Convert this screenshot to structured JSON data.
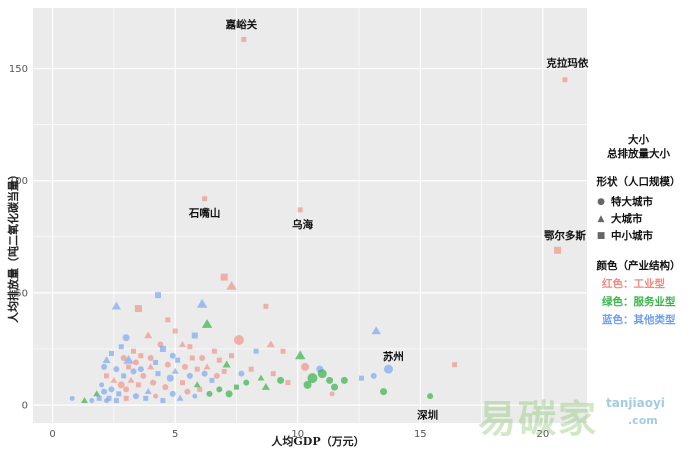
{
  "chart_data": {
    "type": "scatter",
    "xlabel": "人均GDP（万元）",
    "ylabel": "人均排放量（吨二氧化碳当量）",
    "xlim": [
      -0.8,
      21.8
    ],
    "ylim": [
      -8,
      177
    ],
    "x_ticks": [
      0,
      5,
      10,
      15,
      20
    ],
    "y_ticks": [
      0,
      50,
      100,
      150
    ],
    "grid": true,
    "background": "#ebebeb",
    "grid_color": "#ffffff",
    "colors": {
      "industry": "#f08a80",
      "service": "#3cb44b",
      "other": "#6f9ff0"
    },
    "legend": {
      "size_title": "大小",
      "size_subtitle": "总排放量大小",
      "shape_title": "形状（人口规模）",
      "shape_items": [
        {
          "label": "特大城市",
          "shape": "circle"
        },
        {
          "label": "大城市",
          "shape": "triangle"
        },
        {
          "label": "中小城市",
          "shape": "square"
        }
      ],
      "color_title": "颜色（产业结构）",
      "color_items": [
        {
          "label": "红色：工业型",
          "group": "industry"
        },
        {
          "label": "绿色：服务业型",
          "group": "service"
        },
        {
          "label": "蓝色：其他类型",
          "group": "other"
        }
      ],
      "position": "right"
    },
    "annotations": [
      {
        "text": "嘉峪关",
        "x": 7.7,
        "y": 168
      },
      {
        "text": "克拉玛依",
        "x": 21.0,
        "y": 151
      },
      {
        "text": "石嘴山",
        "x": 6.2,
        "y": 84
      },
      {
        "text": "乌海",
        "x": 10.2,
        "y": 79
      },
      {
        "text": "鄂尔多斯",
        "x": 20.9,
        "y": 74
      },
      {
        "text": "苏州",
        "x": 13.9,
        "y": 20
      },
      {
        "text": "深圳",
        "x": 15.3,
        "y": -6
      }
    ],
    "points": [
      {
        "name": "嘉峪关",
        "x": 7.8,
        "y": 163,
        "shape": "square",
        "group": "industry",
        "size": 5
      },
      {
        "name": "克拉玛依",
        "x": 20.9,
        "y": 145,
        "shape": "square",
        "group": "industry",
        "size": 5
      },
      {
        "name": "石嘴山",
        "x": 6.2,
        "y": 92,
        "shape": "square",
        "group": "industry",
        "size": 5
      },
      {
        "name": "乌海",
        "x": 10.1,
        "y": 87,
        "shape": "square",
        "group": "industry",
        "size": 5
      },
      {
        "name": "鄂尔多斯",
        "x": 20.6,
        "y": 69,
        "shape": "square",
        "group": "industry",
        "size": 7
      },
      {
        "name": "苏州",
        "x": 13.7,
        "y": 16,
        "shape": "circle",
        "group": "other",
        "size": 9
      },
      {
        "name": "深圳",
        "x": 15.4,
        "y": 4,
        "shape": "circle",
        "group": "service",
        "size": 6
      },
      {
        "x": 13.2,
        "y": 33,
        "shape": "triangle",
        "group": "other",
        "size": 8
      },
      {
        "x": 16.4,
        "y": 18,
        "shape": "square",
        "group": "industry",
        "size": 5
      },
      {
        "x": 13.5,
        "y": 6,
        "shape": "circle",
        "group": "service",
        "size": 7
      },
      {
        "x": 12.6,
        "y": 12,
        "shape": "square",
        "group": "other",
        "size": 5
      },
      {
        "x": 13.1,
        "y": 13,
        "shape": "circle",
        "group": "other",
        "size": 6
      },
      {
        "x": 7.0,
        "y": 57,
        "shape": "square",
        "group": "industry",
        "size": 7
      },
      {
        "x": 7.3,
        "y": 53,
        "shape": "triangle",
        "group": "industry",
        "size": 9
      },
      {
        "x": 6.1,
        "y": 45,
        "shape": "triangle",
        "group": "other",
        "size": 9
      },
      {
        "x": 6.3,
        "y": 36,
        "shape": "triangle",
        "group": "service",
        "size": 9
      },
      {
        "x": 8.7,
        "y": 44,
        "shape": "square",
        "group": "industry",
        "size": 5
      },
      {
        "x": 4.3,
        "y": 49,
        "shape": "square",
        "group": "other",
        "size": 6
      },
      {
        "x": 3.5,
        "y": 43,
        "shape": "square",
        "group": "industry",
        "size": 7
      },
      {
        "x": 2.6,
        "y": 44,
        "shape": "triangle",
        "group": "other",
        "size": 8
      },
      {
        "x": 4.7,
        "y": 38,
        "shape": "square",
        "group": "industry",
        "size": 5
      },
      {
        "x": 5.0,
        "y": 33,
        "shape": "square",
        "group": "industry",
        "size": 5
      },
      {
        "x": 5.8,
        "y": 31,
        "shape": "square",
        "group": "other",
        "size": 6
      },
      {
        "x": 7.6,
        "y": 29,
        "shape": "circle",
        "group": "industry",
        "size": 10
      },
      {
        "x": 8.9,
        "y": 27,
        "shape": "triangle",
        "group": "industry",
        "size": 7
      },
      {
        "x": 8.3,
        "y": 24,
        "shape": "square",
        "group": "other",
        "size": 5
      },
      {
        "x": 9.4,
        "y": 24,
        "shape": "square",
        "group": "industry",
        "size": 5
      },
      {
        "x": 3.9,
        "y": 31,
        "shape": "triangle",
        "group": "industry",
        "size": 7
      },
      {
        "x": 4.4,
        "y": 27,
        "shape": "circle",
        "group": "industry",
        "size": 6
      },
      {
        "x": 4.5,
        "y": 25,
        "shape": "square",
        "group": "other",
        "size": 6
      },
      {
        "x": 5.3,
        "y": 27,
        "shape": "triangle",
        "group": "industry",
        "size": 6
      },
      {
        "x": 5.6,
        "y": 26,
        "shape": "square",
        "group": "industry",
        "size": 5
      },
      {
        "x": 6.6,
        "y": 24,
        "shape": "square",
        "group": "industry",
        "size": 5
      },
      {
        "x": 3.0,
        "y": 30,
        "shape": "circle",
        "group": "other",
        "size": 7
      },
      {
        "x": 2.8,
        "y": 26,
        "shape": "square",
        "group": "other",
        "size": 5
      },
      {
        "x": 2.2,
        "y": 20,
        "shape": "triangle",
        "group": "other",
        "size": 7
      },
      {
        "x": 3.1,
        "y": 20,
        "shape": "triangle",
        "group": "other",
        "size": 9
      },
      {
        "x": 3.6,
        "y": 22,
        "shape": "square",
        "group": "industry",
        "size": 5
      },
      {
        "x": 4.0,
        "y": 21,
        "shape": "circle",
        "group": "industry",
        "size": 6
      },
      {
        "x": 5.7,
        "y": 21,
        "shape": "square",
        "group": "industry",
        "size": 5
      },
      {
        "x": 6.1,
        "y": 21,
        "shape": "circle",
        "group": "industry",
        "size": 6
      },
      {
        "x": 6.8,
        "y": 20,
        "shape": "square",
        "group": "industry",
        "size": 5
      },
      {
        "x": 7.3,
        "y": 22,
        "shape": "square",
        "group": "industry",
        "size": 5
      },
      {
        "x": 7.1,
        "y": 18,
        "shape": "triangle",
        "group": "service",
        "size": 7
      },
      {
        "x": 10.1,
        "y": 22,
        "shape": "triangle",
        "group": "service",
        "size": 9
      },
      {
        "x": 10.3,
        "y": 17,
        "shape": "circle",
        "group": "industry",
        "size": 8
      },
      {
        "x": 10.9,
        "y": 16,
        "shape": "circle",
        "group": "other",
        "size": 7
      },
      {
        "x": 11.0,
        "y": 14,
        "shape": "circle",
        "group": "service",
        "size": 9
      },
      {
        "x": 10.6,
        "y": 12,
        "shape": "circle",
        "group": "service",
        "size": 10
      },
      {
        "x": 11.3,
        "y": 11,
        "shape": "circle",
        "group": "service",
        "size": 7
      },
      {
        "x": 11.9,
        "y": 11,
        "shape": "circle",
        "group": "service",
        "size": 7
      },
      {
        "x": 10.4,
        "y": 9,
        "shape": "circle",
        "group": "service",
        "size": 8
      },
      {
        "x": 11.5,
        "y": 8,
        "shape": "circle",
        "group": "service",
        "size": 7
      },
      {
        "x": 11.4,
        "y": 5,
        "shape": "circle",
        "group": "industry",
        "size": 5
      },
      {
        "x": 9.0,
        "y": 14,
        "shape": "square",
        "group": "industry",
        "size": 5
      },
      {
        "x": 9.3,
        "y": 11,
        "shape": "circle",
        "group": "service",
        "size": 7
      },
      {
        "x": 9.6,
        "y": 10,
        "shape": "square",
        "group": "industry",
        "size": 5
      },
      {
        "x": 8.5,
        "y": 12,
        "shape": "triangle",
        "group": "service",
        "size": 6
      },
      {
        "x": 8.7,
        "y": 8,
        "shape": "triangle",
        "group": "service",
        "size": 7
      },
      {
        "x": 7.9,
        "y": 10,
        "shape": "circle",
        "group": "service",
        "size": 6
      },
      {
        "x": 7.5,
        "y": 8,
        "shape": "square",
        "group": "service",
        "size": 5
      },
      {
        "x": 7.2,
        "y": 5,
        "shape": "circle",
        "group": "service",
        "size": 7
      },
      {
        "x": 6.8,
        "y": 7,
        "shape": "circle",
        "group": "service",
        "size": 6
      },
      {
        "x": 6.5,
        "y": 11,
        "shape": "square",
        "group": "other",
        "size": 5
      },
      {
        "x": 6.2,
        "y": 14,
        "shape": "circle",
        "group": "other",
        "size": 6
      },
      {
        "x": 5.9,
        "y": 9,
        "shape": "triangle",
        "group": "service",
        "size": 6
      },
      {
        "x": 5.6,
        "y": 13,
        "shape": "circle",
        "group": "other",
        "size": 6
      },
      {
        "x": 5.3,
        "y": 10,
        "shape": "square",
        "group": "industry",
        "size": 5
      },
      {
        "x": 5.0,
        "y": 15,
        "shape": "triangle",
        "group": "other",
        "size": 6
      },
      {
        "x": 4.8,
        "y": 12,
        "shape": "circle",
        "group": "other",
        "size": 7
      },
      {
        "x": 4.6,
        "y": 8,
        "shape": "circle",
        "group": "industry",
        "size": 6
      },
      {
        "x": 4.3,
        "y": 14,
        "shape": "square",
        "group": "other",
        "size": 5
      },
      {
        "x": 4.1,
        "y": 10,
        "shape": "circle",
        "group": "industry",
        "size": 6
      },
      {
        "x": 3.9,
        "y": 6,
        "shape": "triangle",
        "group": "other",
        "size": 6
      },
      {
        "x": 3.7,
        "y": 13,
        "shape": "circle",
        "group": "industry",
        "size": 6
      },
      {
        "x": 3.5,
        "y": 9,
        "shape": "square",
        "group": "industry",
        "size": 5
      },
      {
        "x": 3.3,
        "y": 15,
        "shape": "circle",
        "group": "other",
        "size": 6
      },
      {
        "x": 3.2,
        "y": 11,
        "shape": "triangle",
        "group": "industry",
        "size": 6
      },
      {
        "x": 3.0,
        "y": 7,
        "shape": "circle",
        "group": "industry",
        "size": 6
      },
      {
        "x": 2.9,
        "y": 13,
        "shape": "square",
        "group": "other",
        "size": 5
      },
      {
        "x": 2.8,
        "y": 9,
        "shape": "circle",
        "group": "industry",
        "size": 7
      },
      {
        "x": 2.7,
        "y": 5,
        "shape": "square",
        "group": "other",
        "size": 5
      },
      {
        "x": 2.6,
        "y": 16,
        "shape": "circle",
        "group": "other",
        "size": 6
      },
      {
        "x": 2.5,
        "y": 11,
        "shape": "triangle",
        "group": "industry",
        "size": 6
      },
      {
        "x": 2.4,
        "y": 7,
        "shape": "circle",
        "group": "other",
        "size": 6
      },
      {
        "x": 2.3,
        "y": 3,
        "shape": "square",
        "group": "other",
        "size": 5
      },
      {
        "x": 2.2,
        "y": 13,
        "shape": "square",
        "group": "industry",
        "size": 5
      },
      {
        "x": 2.1,
        "y": 6,
        "shape": "circle",
        "group": "other",
        "size": 6
      },
      {
        "x": 2.0,
        "y": 9,
        "shape": "circle",
        "group": "other",
        "size": 5
      },
      {
        "x": 1.9,
        "y": 3,
        "shape": "square",
        "group": "other",
        "size": 5
      },
      {
        "x": 1.8,
        "y": 5,
        "shape": "triangle",
        "group": "service",
        "size": 6
      },
      {
        "x": 1.6,
        "y": 2,
        "shape": "circle",
        "group": "other",
        "size": 5
      },
      {
        "x": 1.3,
        "y": 2,
        "shape": "triangle",
        "group": "service",
        "size": 6
      },
      {
        "x": 0.8,
        "y": 3,
        "shape": "circle",
        "group": "other",
        "size": 5
      },
      {
        "x": 2.1,
        "y": 17,
        "shape": "circle",
        "group": "other",
        "size": 6
      },
      {
        "x": 2.2,
        "y": 2,
        "shape": "circle",
        "group": "other",
        "size": 5
      },
      {
        "x": 2.6,
        "y": 2,
        "shape": "square",
        "group": "other",
        "size": 5
      },
      {
        "x": 3.0,
        "y": 3,
        "shape": "square",
        "group": "industry",
        "size": 5
      },
      {
        "x": 3.4,
        "y": 4,
        "shape": "circle",
        "group": "other",
        "size": 6
      },
      {
        "x": 3.8,
        "y": 3,
        "shape": "square",
        "group": "other",
        "size": 5
      },
      {
        "x": 4.2,
        "y": 4,
        "shape": "circle",
        "group": "industry",
        "size": 5
      },
      {
        "x": 4.5,
        "y": 2,
        "shape": "square",
        "group": "other",
        "size": 5
      },
      {
        "x": 4.9,
        "y": 5,
        "shape": "circle",
        "group": "other",
        "size": 6
      },
      {
        "x": 5.2,
        "y": 3,
        "shape": "triangle",
        "group": "other",
        "size": 6
      },
      {
        "x": 5.5,
        "y": 6,
        "shape": "circle",
        "group": "industry",
        "size": 6
      },
      {
        "x": 5.8,
        "y": 4,
        "shape": "circle",
        "group": "other",
        "size": 5
      },
      {
        "x": 6.0,
        "y": 7,
        "shape": "square",
        "group": "industry",
        "size": 5
      },
      {
        "x": 6.4,
        "y": 5,
        "shape": "circle",
        "group": "service",
        "size": 6
      },
      {
        "x": 3.1,
        "y": 17,
        "shape": "square",
        "group": "industry",
        "size": 5
      },
      {
        "x": 3.4,
        "y": 19,
        "shape": "circle",
        "group": "industry",
        "size": 6
      },
      {
        "x": 3.6,
        "y": 16,
        "shape": "circle",
        "group": "other",
        "size": 6
      },
      {
        "x": 4.0,
        "y": 17,
        "shape": "triangle",
        "group": "industry",
        "size": 6
      },
      {
        "x": 4.2,
        "y": 19,
        "shape": "square",
        "group": "other",
        "size": 5
      },
      {
        "x": 4.7,
        "y": 18,
        "shape": "circle",
        "group": "industry",
        "size": 6
      },
      {
        "x": 5.1,
        "y": 20,
        "shape": "square",
        "group": "other",
        "size": 5
      },
      {
        "x": 5.4,
        "y": 17,
        "shape": "circle",
        "group": "industry",
        "size": 6
      },
      {
        "x": 5.9,
        "y": 16,
        "shape": "square",
        "group": "industry",
        "size": 5
      },
      {
        "x": 6.3,
        "y": 17,
        "shape": "triangle",
        "group": "industry",
        "size": 6
      },
      {
        "x": 2.4,
        "y": 23,
        "shape": "square",
        "group": "other",
        "size": 5
      },
      {
        "x": 2.9,
        "y": 21,
        "shape": "circle",
        "group": "industry",
        "size": 6
      },
      {
        "x": 3.3,
        "y": 24,
        "shape": "square",
        "group": "industry",
        "size": 5
      },
      {
        "x": 4.9,
        "y": 22,
        "shape": "circle",
        "group": "other",
        "size": 6
      },
      {
        "x": 6.7,
        "y": 13,
        "shape": "circle",
        "group": "industry",
        "size": 6
      },
      {
        "x": 7.0,
        "y": 15,
        "shape": "square",
        "group": "industry",
        "size": 5
      },
      {
        "x": 7.7,
        "y": 14,
        "shape": "circle",
        "group": "other",
        "size": 6
      },
      {
        "x": 8.1,
        "y": 16,
        "shape": "square",
        "group": "industry",
        "size": 5
      }
    ]
  },
  "watermark": {
    "main": "易碳家",
    "url1": "tanjiaoyi",
    "url2": ".com"
  }
}
